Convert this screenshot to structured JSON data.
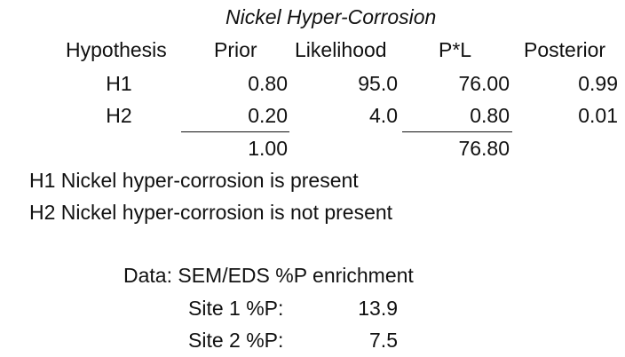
{
  "title": "Nickel Hyper-Corrosion",
  "table": {
    "headers": [
      "Hypothesis",
      "Prior",
      "Likelihood",
      "P*L",
      "Posterior"
    ],
    "rows": [
      {
        "hypothesis": "H1",
        "prior": "0.80",
        "likelihood": "95.0",
        "pl": "76.00",
        "posterior": "0.99"
      },
      {
        "hypothesis": "H2",
        "prior": "0.20",
        "likelihood": "4.0",
        "pl": "0.80",
        "posterior": "0.01"
      }
    ],
    "totals": {
      "prior": "1.00",
      "pl": "76.80"
    }
  },
  "definitions": [
    "H1 Nickel hyper-corrosion is present",
    "H2 Nickel hyper-corrosion is not present"
  ],
  "data_section": {
    "label": "Data: SEM/EDS %P enrichment",
    "sites": [
      {
        "label": "Site 1 %P:",
        "value": "13.9"
      },
      {
        "label": "Site 2 %P:",
        "value": "7.5"
      }
    ]
  }
}
